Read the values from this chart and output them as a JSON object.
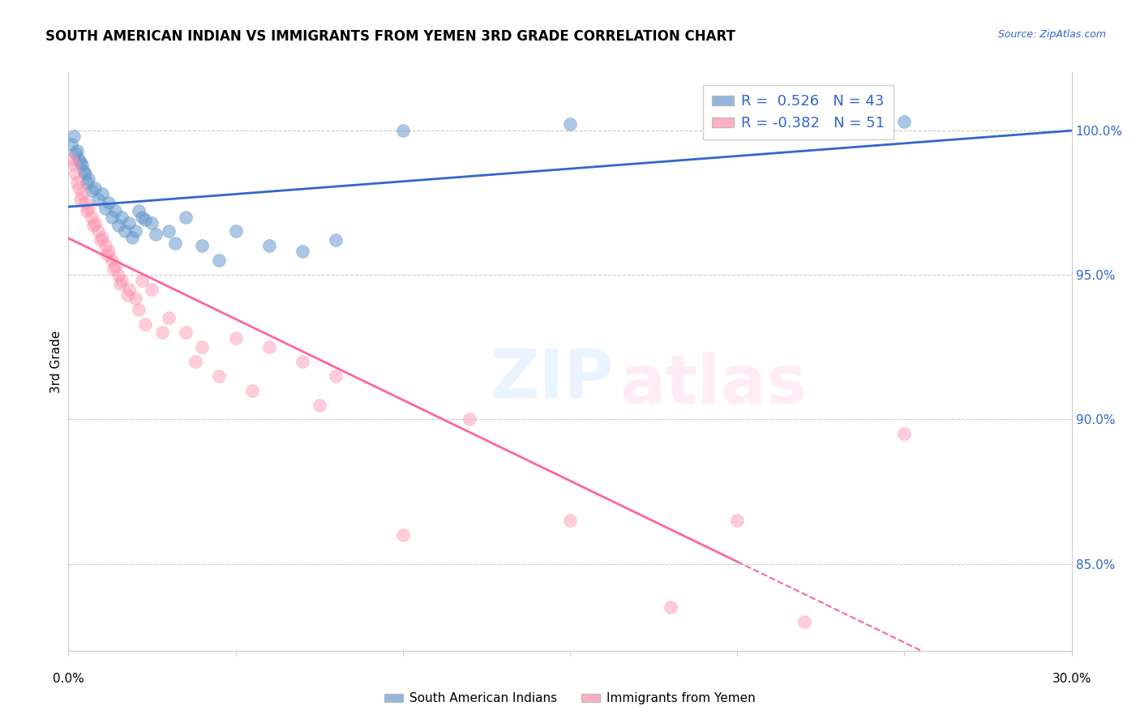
{
  "title": "SOUTH AMERICAN INDIAN VS IMMIGRANTS FROM YEMEN 3RD GRADE CORRELATION CHART",
  "source": "Source: ZipAtlas.com",
  "ylabel": "3rd Grade",
  "right_yticks": [
    85.0,
    90.0,
    95.0,
    100.0
  ],
  "blue_R": 0.526,
  "blue_N": 43,
  "pink_R": -0.382,
  "pink_N": 51,
  "legend_label_blue": "South American Indians",
  "legend_label_pink": "Immigrants from Yemen",
  "blue_color": "#6699CC",
  "pink_color": "#FF8FAB",
  "blue_line_color": "#3366CC",
  "pink_line_color": "#FF6699",
  "blue_scatter_x": [
    0.1,
    0.2,
    0.3,
    0.4,
    0.5,
    0.6,
    0.8,
    1.0,
    1.2,
    1.4,
    1.6,
    1.8,
    2.0,
    2.2,
    2.5,
    3.0,
    3.5,
    4.0,
    5.0,
    6.0,
    7.0,
    8.0,
    10.0,
    15.0,
    20.0,
    0.15,
    0.25,
    0.35,
    0.45,
    0.55,
    0.7,
    0.9,
    1.1,
    1.3,
    1.5,
    1.7,
    1.9,
    2.1,
    2.3,
    2.6,
    3.2,
    4.5,
    25.0
  ],
  "blue_scatter_y": [
    99.5,
    99.2,
    99.0,
    98.8,
    98.5,
    98.3,
    98.0,
    97.8,
    97.5,
    97.2,
    97.0,
    96.8,
    96.5,
    97.0,
    96.8,
    96.5,
    97.0,
    96.0,
    96.5,
    96.0,
    95.8,
    96.2,
    100.0,
    100.2,
    100.5,
    99.8,
    99.3,
    98.9,
    98.6,
    98.2,
    97.9,
    97.6,
    97.3,
    97.0,
    96.7,
    96.5,
    96.3,
    97.2,
    96.9,
    96.4,
    96.1,
    95.5,
    100.3
  ],
  "pink_scatter_x": [
    0.1,
    0.2,
    0.3,
    0.4,
    0.5,
    0.6,
    0.7,
    0.8,
    0.9,
    1.0,
    1.1,
    1.2,
    1.3,
    1.4,
    1.5,
    1.6,
    1.8,
    2.0,
    2.2,
    2.5,
    3.0,
    3.5,
    4.0,
    5.0,
    6.0,
    7.0,
    8.0,
    10.0,
    15.0,
    20.0,
    0.15,
    0.25,
    0.35,
    0.55,
    0.75,
    0.95,
    1.15,
    1.35,
    1.55,
    1.75,
    2.1,
    2.3,
    2.8,
    3.8,
    4.5,
    5.5,
    7.5,
    12.0,
    18.0,
    22.0,
    25.0
  ],
  "pink_scatter_y": [
    99.0,
    98.5,
    98.0,
    97.8,
    97.5,
    97.3,
    97.0,
    96.8,
    96.5,
    96.3,
    96.0,
    95.8,
    95.5,
    95.3,
    95.0,
    94.8,
    94.5,
    94.2,
    94.8,
    94.5,
    93.5,
    93.0,
    92.5,
    92.8,
    92.5,
    92.0,
    91.5,
    86.0,
    86.5,
    86.5,
    98.8,
    98.2,
    97.6,
    97.2,
    96.7,
    96.2,
    95.7,
    95.2,
    94.7,
    94.3,
    93.8,
    93.3,
    93.0,
    92.0,
    91.5,
    91.0,
    90.5,
    90.0,
    83.5,
    83.0,
    89.5
  ],
  "xlim": [
    0,
    30
  ],
  "ylim": [
    82,
    102
  ]
}
